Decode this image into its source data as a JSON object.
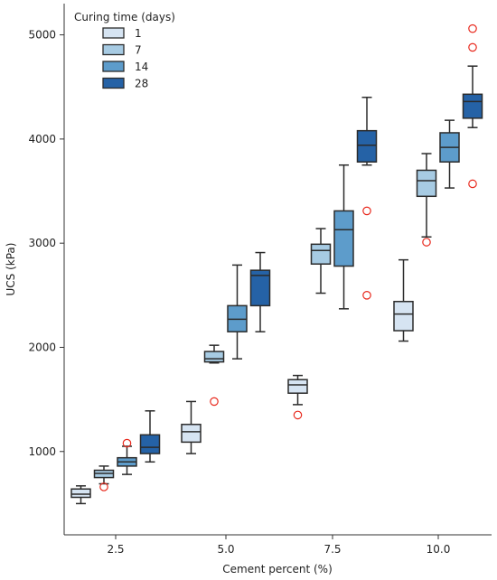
{
  "chart_data": {
    "type": "boxplot",
    "xlabel": "Cement percent (%)",
    "ylabel": "UCS (kPa)",
    "categories": [
      "2.5",
      "5.0",
      "7.5",
      "10.0"
    ],
    "ylim": [
      200,
      5300
    ],
    "yticks": [
      1000,
      2000,
      3000,
      4000,
      5000
    ],
    "legend": {
      "title": "Curing time (days)",
      "placement": "upper-left"
    },
    "series": [
      {
        "name": "1",
        "color": "#d6e4f2",
        "boxes": [
          {
            "whislo": 500,
            "q1": 560,
            "med": 590,
            "q3": 640,
            "whishi": 670,
            "fliers": []
          },
          {
            "whislo": 980,
            "q1": 1090,
            "med": 1190,
            "q3": 1260,
            "whishi": 1480,
            "fliers": []
          },
          {
            "whislo": 1450,
            "q1": 1560,
            "med": 1640,
            "q3": 1690,
            "whishi": 1730,
            "fliers": [
              1350
            ]
          },
          {
            "whislo": 2060,
            "q1": 2160,
            "med": 2320,
            "q3": 2440,
            "whishi": 2840,
            "fliers": []
          }
        ]
      },
      {
        "name": "7",
        "color": "#a7cbe3",
        "boxes": [
          {
            "whislo": 690,
            "q1": 750,
            "med": 790,
            "q3": 820,
            "whishi": 860,
            "fliers": [
              660
            ]
          },
          {
            "whislo": 1850,
            "q1": 1860,
            "med": 1890,
            "q3": 1960,
            "whishi": 2020,
            "fliers": [
              1480
            ]
          },
          {
            "whislo": 2520,
            "q1": 2800,
            "med": 2930,
            "q3": 2990,
            "whishi": 3140,
            "fliers": []
          },
          {
            "whislo": 3060,
            "q1": 3450,
            "med": 3600,
            "q3": 3700,
            "whishi": 3860,
            "fliers": [
              3010
            ]
          }
        ]
      },
      {
        "name": "14",
        "color": "#5d9ccb",
        "boxes": [
          {
            "whislo": 780,
            "q1": 860,
            "med": 900,
            "q3": 940,
            "whishi": 1050,
            "fliers": [
              1080
            ]
          },
          {
            "whislo": 1890,
            "q1": 2150,
            "med": 2270,
            "q3": 2400,
            "whishi": 2790,
            "fliers": []
          },
          {
            "whislo": 2370,
            "q1": 2780,
            "med": 3130,
            "q3": 3310,
            "whishi": 3750,
            "fliers": []
          },
          {
            "whislo": 3530,
            "q1": 3780,
            "med": 3920,
            "q3": 4060,
            "whishi": 4180,
            "fliers": []
          }
        ]
      },
      {
        "name": "28",
        "color": "#2562a6",
        "boxes": [
          {
            "whislo": 900,
            "q1": 980,
            "med": 1040,
            "q3": 1160,
            "whishi": 1390,
            "fliers": []
          },
          {
            "whislo": 2150,
            "q1": 2400,
            "med": 2690,
            "q3": 2740,
            "whishi": 2910,
            "fliers": []
          },
          {
            "whislo": 3750,
            "q1": 3780,
            "med": 3940,
            "q3": 4080,
            "whishi": 4400,
            "fliers": [
              3310,
              2500
            ]
          },
          {
            "whislo": 4110,
            "q1": 4200,
            "med": 4360,
            "q3": 4430,
            "whishi": 4700,
            "fliers": [
              5060,
              4880,
              3570
            ]
          }
        ]
      }
    ]
  }
}
